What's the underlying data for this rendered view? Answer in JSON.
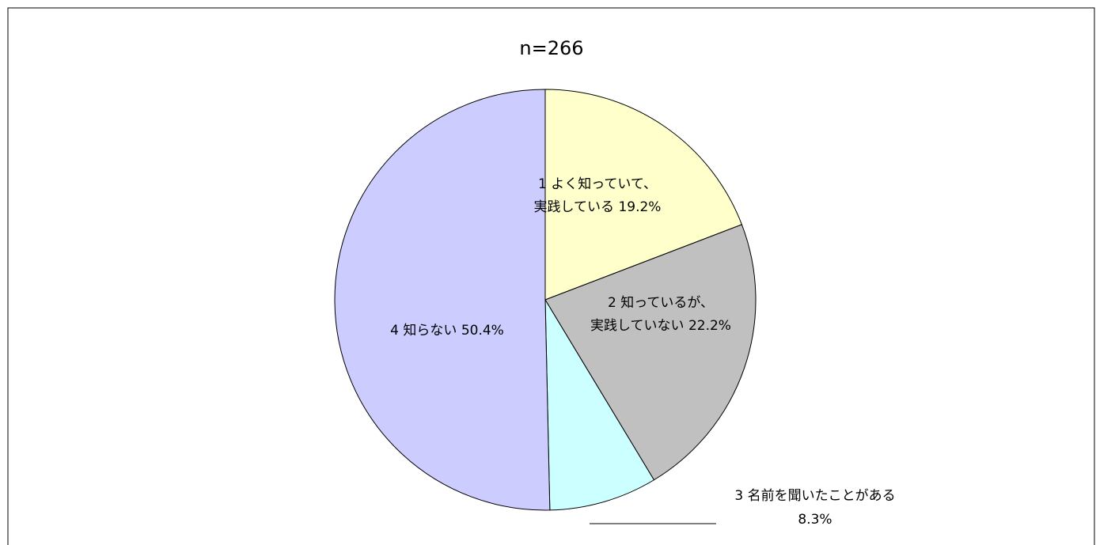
{
  "chart_data": {
    "type": "pie",
    "title": "n=266",
    "categories": [
      [
        "1 よく知っていて、",
        "実践している"
      ],
      [
        "2 知っているが、",
        "実践していない"
      ],
      [
        "3 名前を聞いたことがある"
      ],
      [
        "4 知らない"
      ]
    ],
    "values": [
      19.2,
      22.2,
      8.3,
      50.4
    ],
    "value_labels": [
      "19.2%",
      "22.2%",
      "8.3%",
      "50.4%"
    ],
    "colors": [
      "#ffffcc",
      "#c0c0c0",
      "#ccffff",
      "#ccccff"
    ]
  }
}
